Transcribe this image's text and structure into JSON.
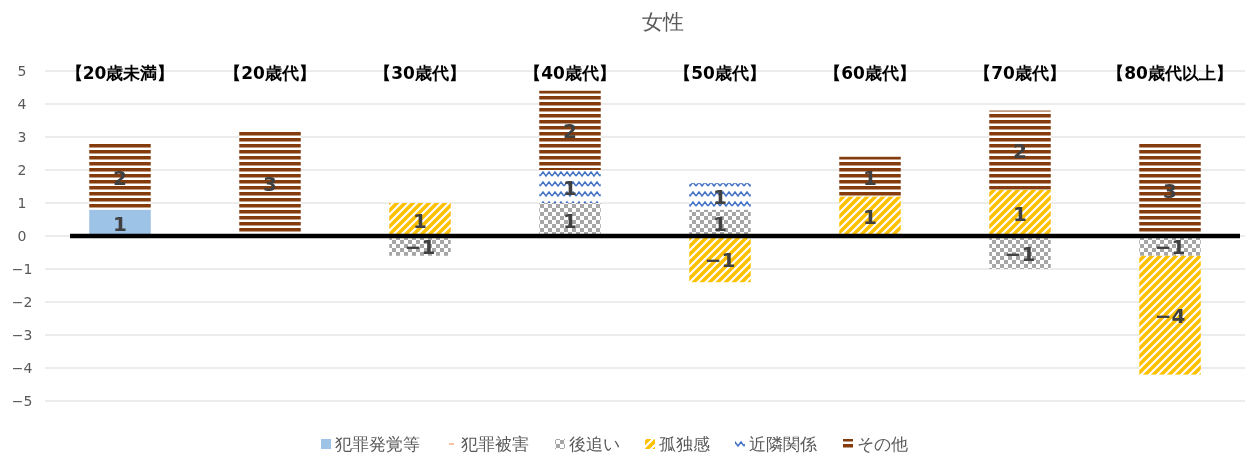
{
  "chart_data": {
    "type": "bar",
    "title": "女性",
    "stacked": true,
    "categories": [
      "【20歳未満】",
      "【20歳代】",
      "【30歳代】",
      "【40歳代】",
      "【50歳代】",
      "【60歳代】",
      "【70歳代】",
      "【80歳代以上】"
    ],
    "series": [
      {
        "name": "犯罪発覚等",
        "color": "#9dc3e6",
        "values": [
          0.8,
          null,
          null,
          null,
          null,
          null,
          null,
          null
        ],
        "value_labels": [
          "1",
          null,
          null,
          null,
          null,
          null,
          null,
          null
        ]
      },
      {
        "name": "犯罪被害",
        "color": "#f4b183",
        "values": [
          null,
          null,
          null,
          null,
          null,
          null,
          null,
          null
        ],
        "value_labels": [
          null,
          null,
          null,
          null,
          null,
          null,
          null,
          null
        ]
      },
      {
        "name": "後追い",
        "color": "#a6a6a6",
        "values": [
          null,
          null,
          -0.6,
          1.0,
          0.8,
          null,
          -1.0,
          -0.6
        ],
        "value_labels": [
          null,
          null,
          "−1",
          "1",
          "1",
          null,
          "−1",
          "−1"
        ]
      },
      {
        "name": "孤独感",
        "color": "#ffc000",
        "values": [
          null,
          null,
          1.0,
          null,
          -1.4,
          1.2,
          1.4,
          -3.6
        ],
        "value_labels": [
          null,
          null,
          "1",
          null,
          "−1",
          "1",
          "1",
          "−4"
        ]
      },
      {
        "name": "近隣関係",
        "color": "#4472c4",
        "values": [
          null,
          null,
          null,
          1.0,
          0.8,
          null,
          null,
          null
        ],
        "value_labels": [
          null,
          null,
          null,
          "1",
          "1",
          null,
          null,
          null
        ]
      },
      {
        "name": "その他",
        "color": "#843c0c",
        "values": [
          2.0,
          3.2,
          null,
          2.4,
          null,
          1.2,
          2.4,
          2.8
        ],
        "value_labels": [
          "2",
          "3",
          null,
          "2",
          null,
          "1",
          "2",
          "3"
        ]
      }
    ],
    "ylim": [
      -5,
      5
    ],
    "yticks": [
      -5,
      -4,
      -3,
      -2,
      -1,
      0,
      1,
      2,
      3,
      4,
      5
    ],
    "grid": "y",
    "legend": "bottom"
  }
}
